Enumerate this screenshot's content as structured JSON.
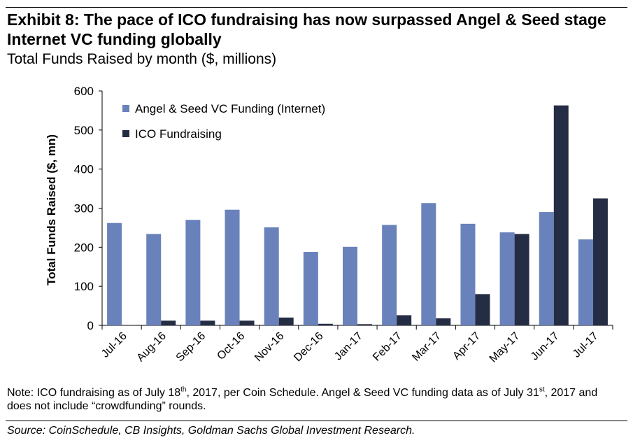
{
  "title": "Exhibit 8: The pace of ICO fundraising has now surpassed Angel & Seed stage Internet VC funding globally",
  "subtitle": "Total Funds Raised by month ($, millions)",
  "note": {
    "part1": "Note: ICO fundraising as of July 18",
    "sup1": "th",
    "part2": ", 2017, per Coin Schedule. Angel & Seed VC funding data as of July 31",
    "sup2": "st",
    "part3": ", 2017 and does not include “crowdfunding” rounds."
  },
  "source": "Source: CoinSchedule, CB Insights, Goldman Sachs Global Investment Research.",
  "colors": {
    "angel": "#6a82bb",
    "ico": "#242d44"
  },
  "chart_data": {
    "type": "bar",
    "title": "",
    "xlabel": "",
    "ylabel": "Total Funds Raised ($, mn)",
    "ylim": [
      0,
      600
    ],
    "yticks": [
      "0",
      "100",
      "200",
      "300",
      "400",
      "500",
      "600"
    ],
    "grid": false,
    "legend_placement": "top-left",
    "categories": [
      "Jul-16",
      "Aug-16",
      "Sep-16",
      "Oct-16",
      "Nov-16",
      "Dec-16",
      "Jan-17",
      "Feb-17",
      "Mar-17",
      "Apr-17",
      "May-17",
      "Jun-17",
      "Jul-17"
    ],
    "series": [
      {
        "name": "Angel & Seed VC Funding (Internet)",
        "values": [
          262,
          234,
          270,
          296,
          251,
          188,
          201,
          257,
          313,
          260,
          238,
          290,
          220
        ]
      },
      {
        "name": "ICO Fundraising",
        "values": [
          1,
          12,
          12,
          12,
          20,
          4,
          3,
          26,
          18,
          80,
          234,
          563,
          325
        ]
      }
    ]
  }
}
